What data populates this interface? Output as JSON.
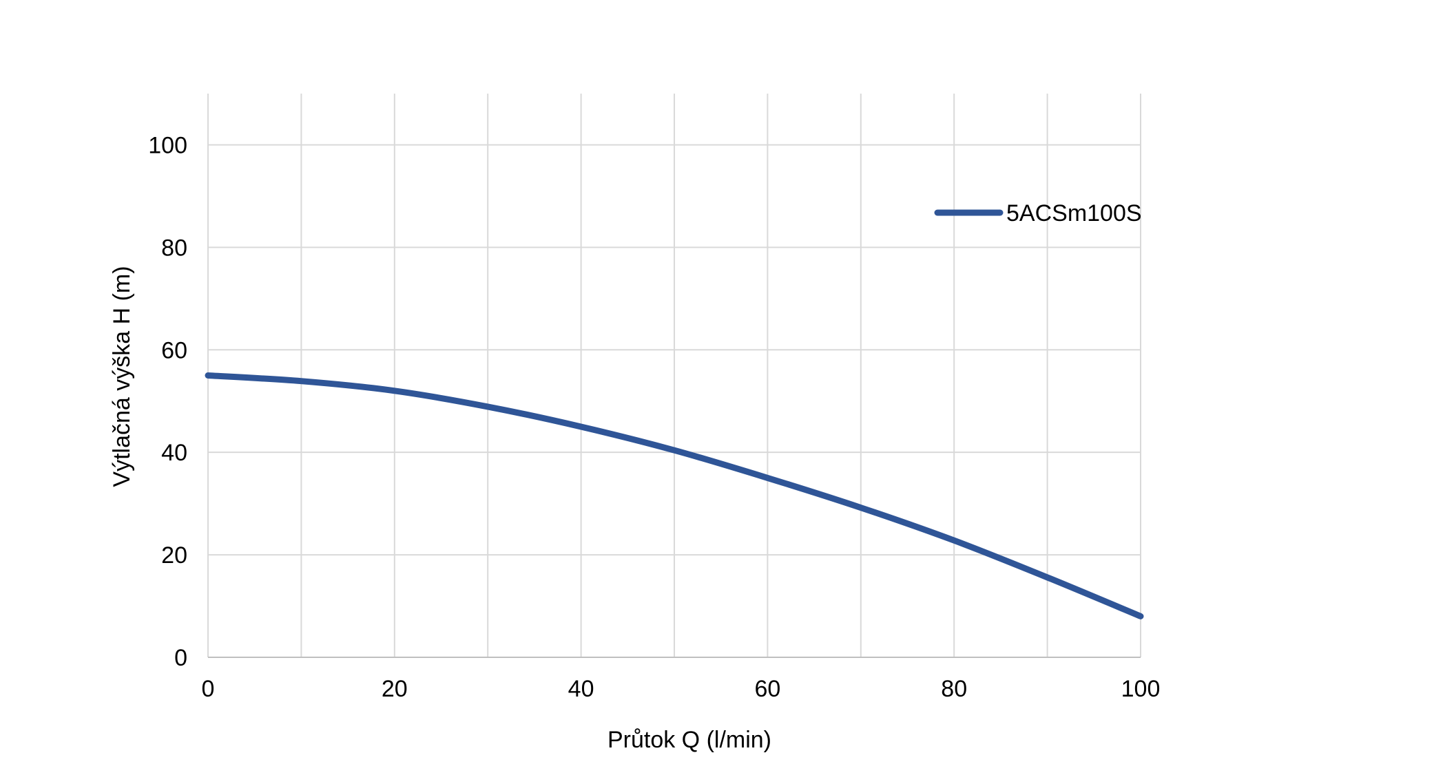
{
  "chart_data": {
    "type": "line",
    "title": "",
    "xlabel": "Průtok Q (l/min)",
    "ylabel": "Výtlačná výška H (m)",
    "xlim": [
      0,
      100
    ],
    "ylim": [
      0,
      110
    ],
    "xticks": [
      0,
      20,
      40,
      60,
      80,
      100
    ],
    "yticks": [
      0,
      20,
      40,
      60,
      80,
      100
    ],
    "x_minor_gridlines": [
      10,
      30,
      50,
      70,
      90
    ],
    "grid": true,
    "legend_position": "top-right",
    "series": [
      {
        "name": "5ACSm100S",
        "color": "#2f5597",
        "x": [
          0,
          10,
          20,
          30,
          40,
          50,
          60,
          70,
          80,
          90,
          100
        ],
        "y": [
          55,
          53.9,
          52.0,
          48.9,
          45.0,
          40.4,
          35.0,
          29.2,
          22.8,
          15.6,
          8.0
        ]
      }
    ]
  }
}
